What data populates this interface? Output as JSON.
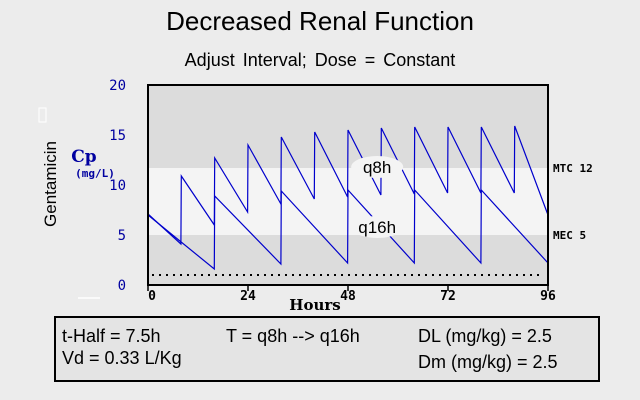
{
  "title": "Decreased Renal Function",
  "subtitle": "Adjust Interval;  Dose = Constant",
  "chart_data": {
    "type": "line",
    "title": "Decreased Renal Function",
    "subtitle": "Adjust Interval;  Dose = Constant",
    "ylabel_main": "Gentamicin",
    "ylabel_unit_1": "Cp",
    "ylabel_unit_2": "(mg/L)",
    "xlabel": "Hours",
    "xlim": [
      0,
      96
    ],
    "ylim": [
      0,
      20
    ],
    "x_ticks": [
      0,
      24,
      48,
      72,
      96
    ],
    "y_ticks": [
      0,
      5,
      10,
      15,
      20
    ],
    "bands": [
      {
        "from": 5,
        "to": 11.7,
        "label": "MEC 5 to MTC 12 range",
        "color": "#f4f4f4"
      }
    ],
    "reference_lines": [
      {
        "label": "MTC 12",
        "y": 11.7
      },
      {
        "label": "MEC 5",
        "y": 5
      }
    ],
    "trough_dotted_line": 1,
    "series": [
      {
        "name": "q8h",
        "dose_interval_h": 8,
        "points": [
          [
            0,
            7.1
          ],
          [
            7.9,
            4.1
          ],
          [
            8,
            10.9
          ],
          [
            15.9,
            6.0
          ],
          [
            16,
            12.7
          ],
          [
            23.9,
            7.3
          ],
          [
            24,
            14.0
          ],
          [
            31.9,
            8.1
          ],
          [
            32,
            14.8
          ],
          [
            39.9,
            8.6
          ],
          [
            40,
            15.3
          ],
          [
            47.9,
            8.8
          ],
          [
            48,
            15.5
          ],
          [
            55.9,
            9.0
          ],
          [
            56,
            15.7
          ],
          [
            63.9,
            9.1
          ],
          [
            64,
            15.8
          ],
          [
            71.9,
            9.2
          ],
          [
            72,
            15.8
          ],
          [
            79.9,
            9.2
          ],
          [
            80,
            15.8
          ],
          [
            87.9,
            9.2
          ],
          [
            88,
            15.9
          ],
          [
            96,
            7.0
          ]
        ]
      },
      {
        "name": "q16h",
        "dose_interval_h": 16,
        "points": [
          [
            0,
            7.0
          ],
          [
            15.9,
            1.6
          ],
          [
            16,
            8.9
          ],
          [
            31.9,
            2.1
          ],
          [
            32,
            9.4
          ],
          [
            47.9,
            2.2
          ],
          [
            48,
            9.5
          ],
          [
            63.9,
            2.2
          ],
          [
            64,
            9.5
          ],
          [
            79.9,
            2.2
          ],
          [
            80,
            9.5
          ],
          [
            96,
            2.2
          ]
        ]
      }
    ],
    "annotations": [
      {
        "text": "q8h",
        "x": 55,
        "y": 11.2
      },
      {
        "text": "q16h",
        "x": 55,
        "y": 5.2
      }
    ]
  },
  "info": {
    "thalf": "t-Half = 7.5h",
    "vd": "Vd = 0.33 L/Kg",
    "interval": "T = q8h --> q16h",
    "dl": "DL (mg/kg) = 2.5",
    "dm": "Dm (mg/kg) = 2.5"
  },
  "colors": {
    "background": "#ececec",
    "plot_bg": "#dcdcdc",
    "band": "#f4f4f4",
    "series": "#0000cc",
    "axis_text": "#0000a0"
  }
}
